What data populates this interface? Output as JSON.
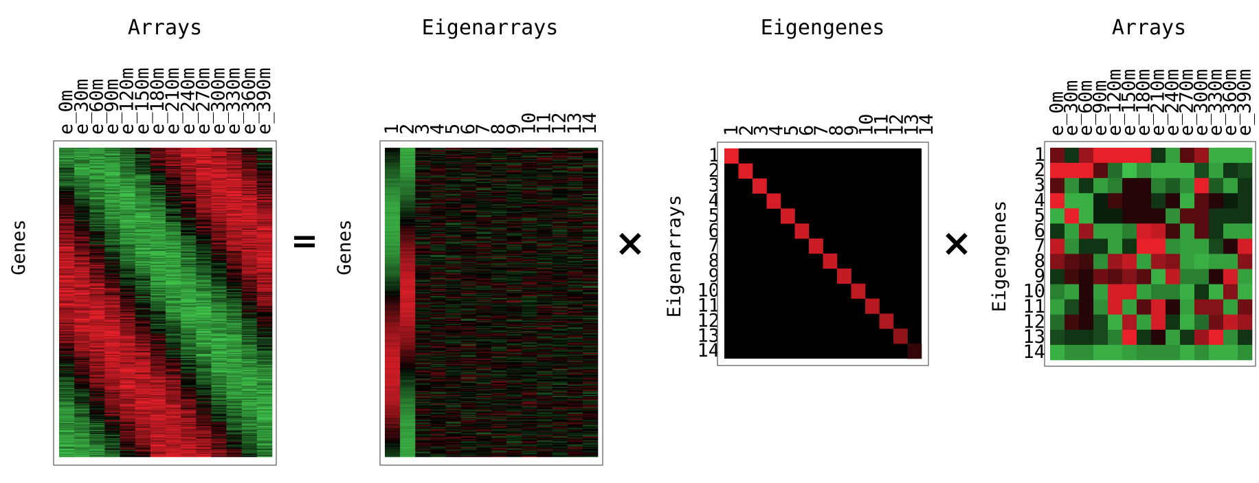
{
  "equation": {
    "equals": "=",
    "times": "×"
  },
  "panels": [
    {
      "id": "data-matrix",
      "title": "Arrays",
      "row_label": "Genes",
      "column_labels": [
        "e_0m",
        "e_30m",
        "e_60m",
        "e_90m",
        "e_120m",
        "e_150m",
        "e_180m",
        "e_210m",
        "e_240m",
        "e_270m",
        "e_300m",
        "e_330m",
        "e_360m",
        "e_390m"
      ],
      "row_tick_labels": []
    },
    {
      "id": "eigenarrays-matrix",
      "title": "Eigenarrays",
      "row_label": "Genes",
      "column_labels": [
        "1",
        "2",
        "3",
        "4",
        "5",
        "6",
        "7",
        "8",
        "9",
        "10",
        "11",
        "12",
        "13",
        "14"
      ],
      "row_tick_labels": []
    },
    {
      "id": "eigenexpression-matrix",
      "title": "Eigengenes",
      "row_label": "Eigenarrays",
      "column_labels": [
        "1",
        "2",
        "3",
        "4",
        "5",
        "6",
        "7",
        "8",
        "9",
        "10",
        "11",
        "12",
        "13",
        "14"
      ],
      "row_tick_labels": [
        "1",
        "2",
        "3",
        "4",
        "5",
        "6",
        "7",
        "8",
        "9",
        "10",
        "11",
        "12",
        "13",
        "14"
      ]
    },
    {
      "id": "eigengenes-matrix",
      "title": "Arrays",
      "row_label": "Eigengenes",
      "column_labels": [
        "e_0m",
        "e_30m",
        "e_60m",
        "e_90m",
        "e_120m",
        "e_150m",
        "e_180m",
        "e_210m",
        "e_240m",
        "e_270m",
        "e_300m",
        "e_330m",
        "e_360m",
        "e_390m"
      ],
      "row_tick_labels": [
        "1",
        "2",
        "3",
        "4",
        "5",
        "6",
        "7",
        "8",
        "9",
        "10",
        "11",
        "12",
        "13",
        "14"
      ]
    }
  ],
  "colors": {
    "red": "#e8202a",
    "green": "#3fc04a",
    "black": "#000000",
    "frame": "#555555"
  },
  "eigenvalue_intensity": [
    1.0,
    0.95,
    0.92,
    0.9,
    0.88,
    0.86,
    0.84,
    0.82,
    0.8,
    0.78,
    0.75,
    0.7,
    0.55,
    0.15
  ],
  "eigengene_values": [
    [
      0.4,
      -0.2,
      0.6,
      1,
      1,
      1,
      1,
      -0.2,
      -0.8,
      0.3,
      0.6,
      -0.9,
      -0.9,
      -0.9
    ],
    [
      1,
      1,
      1,
      0.3,
      -0.5,
      -1,
      -0.7,
      -0.9,
      -0.9,
      -0.9,
      -0.3,
      -0.8,
      -0.2,
      -0.3
    ],
    [
      0.3,
      -0.7,
      -0.2,
      -0.8,
      -0.6,
      0.1,
      0.1,
      -0.6,
      -0.4,
      -0.7,
      1,
      -0.4,
      -0.8,
      -0.2
    ],
    [
      1,
      -0.9,
      -0.9,
      -0.1,
      0.2,
      0.1,
      0.1,
      -0.2,
      0.1,
      -0.9,
      0.3,
      0.1,
      -0.1,
      -0.2
    ],
    [
      -0.9,
      1,
      -0.9,
      -0.1,
      -0.1,
      0.1,
      0.1,
      0.1,
      -0.7,
      0.3,
      0.3,
      -0.2,
      -0.2,
      -0.2
    ],
    [
      -0.2,
      -0.8,
      0.6,
      -0.8,
      -0.8,
      -0.6,
      0.9,
      0.8,
      0.2,
      -0.8,
      0.3,
      -0.2,
      -0.8,
      -0.8
    ],
    [
      0.8,
      -0.7,
      -0.2,
      -0.2,
      -0.8,
      -0.2,
      1,
      1,
      -0.7,
      -0.8,
      -0.8,
      -0.3,
      0.1,
      0.9
    ],
    [
      0.5,
      0.3,
      0.2,
      -0.7,
      0.6,
      0.8,
      -0.8,
      0.6,
      0.5,
      -0.8,
      -0.9,
      -0.8,
      -0.8,
      0.5
    ],
    [
      -0.2,
      0.2,
      0.1,
      0.4,
      0.3,
      0.5,
      0.3,
      -0.9,
      0.8,
      -0.6,
      -0.6,
      0.1,
      0.9,
      -0.8
    ],
    [
      -0.6,
      -0.8,
      0.1,
      -0.8,
      0.9,
      0.9,
      -0.8,
      -0.6,
      -0.6,
      -0.9,
      -0.2,
      -0.9,
      0.5,
      -0.9
    ],
    [
      -0.8,
      -0.3,
      0.1,
      -0.7,
      0.9,
      -0.8,
      0.3,
      0.9,
      0.1,
      -0.8,
      0.5,
      0.5,
      -0.8,
      0.4
    ],
    [
      -0.5,
      0.2,
      0.1,
      -0.3,
      -0.9,
      0.7,
      -0.8,
      0.9,
      -0.2,
      -0.9,
      -0.5,
      0.4,
      0.8,
      0.6
    ],
    [
      -0.3,
      -0.2,
      -0.2,
      -0.3,
      -0.6,
      1,
      -0.2,
      0.1,
      -0.8,
      -0.2,
      0.6,
      1,
      -0.7,
      -0.2
    ],
    [
      -0.9,
      -0.7,
      -0.7,
      -0.9,
      -0.9,
      -0.8,
      -0.7,
      -0.7,
      -0.7,
      -0.9,
      -0.7,
      -0.9,
      -0.9,
      -0.7
    ]
  ]
}
